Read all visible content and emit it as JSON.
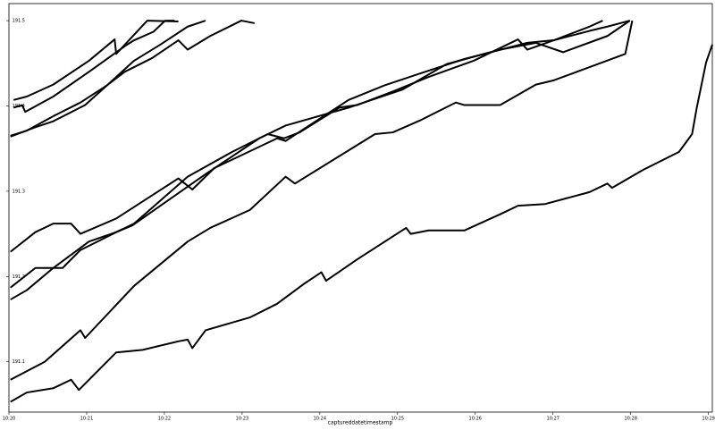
{
  "chart_data": {
    "type": "line",
    "x_label": "captureddatetimestamp",
    "xlim": [
      0,
      9.05
    ],
    "ylim": [
      191.041,
      191.52
    ],
    "xticks": [
      {
        "value": 0,
        "label": "10:20"
      },
      {
        "value": 1,
        "label": "10:21"
      },
      {
        "value": 2,
        "label": "10:22"
      },
      {
        "value": 3,
        "label": "10:23"
      },
      {
        "value": 4,
        "label": "10:24"
      },
      {
        "value": 5,
        "label": "10:25"
      },
      {
        "value": 6,
        "label": "10:26"
      },
      {
        "value": 7,
        "label": "10:27"
      },
      {
        "value": 8,
        "label": "10:28"
      },
      {
        "value": 9,
        "label": "10:29"
      }
    ],
    "yticks": [
      191.1,
      191.2,
      191.3,
      191.4,
      191.5
    ],
    "series": [
      {
        "color": "#000000",
        "x": [
          0.06,
          0.23,
          0.57,
          1.03,
          1.36,
          1.38,
          1.78,
          2.18
        ],
        "values": [
          191.407,
          191.411,
          191.425,
          191.453,
          191.478,
          191.461,
          191.5,
          191.499
        ]
      },
      {
        "color": "#000000",
        "x": [
          0.06,
          0.17,
          0.21,
          0.57,
          1.03,
          1.49,
          1.61,
          1.86,
          2.01,
          2.13
        ],
        "values": [
          191.398,
          191.401,
          191.393,
          191.411,
          191.44,
          191.47,
          191.477,
          191.487,
          191.5,
          191.5
        ]
      },
      {
        "color": "#000000",
        "x": [
          0.02,
          0.23,
          0.57,
          0.92,
          1.26,
          1.61,
          1.95,
          2.3,
          2.53
        ],
        "values": [
          191.365,
          191.371,
          191.388,
          191.404,
          191.424,
          191.453,
          191.472,
          191.493,
          191.5
        ]
      },
      {
        "color": "#000000",
        "x": [
          0.02,
          0.34,
          0.57,
          0.98,
          1.26,
          1.49,
          1.84,
          2.18,
          2.3,
          2.59,
          2.99,
          3.16
        ],
        "values": [
          191.364,
          191.375,
          191.382,
          191.401,
          191.424,
          191.44,
          191.456,
          191.477,
          191.466,
          191.482,
          191.5,
          191.497
        ]
      },
      {
        "color": "#000000",
        "x": [
          0.02,
          0.34,
          0.57,
          0.8,
          0.92,
          1.38,
          2.18,
          2.36,
          2.64,
          3.45,
          3.56,
          4.37,
          4.83,
          5.29,
          5.86,
          6.67,
          7.01,
          7.47,
          7.7,
          7.99
        ],
        "values": [
          191.229,
          191.252,
          191.262,
          191.262,
          191.25,
          191.268,
          191.315,
          191.302,
          191.327,
          191.362,
          191.359,
          191.407,
          191.424,
          191.438,
          191.455,
          191.474,
          191.477,
          191.488,
          191.493,
          191.5
        ]
      },
      {
        "color": "#000000",
        "x": [
          0.02,
          0.34,
          0.69,
          0.92,
          1.38,
          1.61,
          2.3,
          2.87,
          3.33,
          3.54,
          3.74,
          4.25,
          4.48,
          4.94,
          5.4,
          5.98,
          6.55,
          6.67,
          7.01,
          7.47,
          7.64
        ],
        "values": [
          191.187,
          191.21,
          191.21,
          191.231,
          191.252,
          191.262,
          191.317,
          191.346,
          191.367,
          191.362,
          191.369,
          191.398,
          191.401,
          191.417,
          191.434,
          191.453,
          191.478,
          191.466,
          191.477,
          191.493,
          191.5
        ]
      },
      {
        "color": "#000000",
        "x": [
          0.02,
          0.23,
          0.57,
          1.03,
          1.38,
          1.59,
          1.95,
          2.53,
          3.22,
          3.56,
          4.37,
          5.06,
          5.63,
          6.32,
          6.78,
          7.13,
          7.7,
          7.99
        ],
        "values": [
          191.173,
          191.184,
          191.21,
          191.241,
          191.252,
          191.26,
          191.283,
          191.32,
          191.362,
          191.377,
          191.398,
          191.419,
          191.449,
          191.466,
          191.474,
          191.463,
          191.482,
          191.5
        ]
      },
      {
        "color": "#000000",
        "x": [
          0.02,
          0.46,
          0.92,
          0.98,
          1.61,
          2.3,
          2.59,
          3.1,
          3.56,
          3.68,
          4.71,
          4.94,
          5.29,
          5.75,
          5.86,
          6.32,
          6.78,
          7.01,
          7.93,
          8.02
        ],
        "values": [
          191.079,
          191.1,
          191.137,
          191.128,
          191.189,
          191.241,
          191.257,
          191.278,
          191.317,
          191.309,
          191.367,
          191.369,
          191.383,
          191.404,
          191.401,
          191.401,
          191.425,
          191.43,
          191.461,
          191.5
        ]
      },
      {
        "color": "#000000",
        "x": [
          0.02,
          0.23,
          0.57,
          0.8,
          0.9,
          1.38,
          1.72,
          2.18,
          2.3,
          2.36,
          2.53,
          3.1,
          3.45,
          3.79,
          4.02,
          4.08,
          4.48,
          4.94,
          5.11,
          5.17,
          5.4,
          5.86,
          6.32,
          6.55,
          6.9,
          7.47,
          7.7,
          7.76,
          8.16,
          8.62,
          8.71,
          8.79,
          8.85,
          8.97,
          9.05
        ],
        "values": [
          191.053,
          191.064,
          191.069,
          191.079,
          191.067,
          191.111,
          191.114,
          191.124,
          191.126,
          191.116,
          191.137,
          191.152,
          191.168,
          191.191,
          191.205,
          191.195,
          191.22,
          191.247,
          191.257,
          191.25,
          191.254,
          191.254,
          191.273,
          191.283,
          191.285,
          191.299,
          191.309,
          191.304,
          191.325,
          191.346,
          191.357,
          191.367,
          191.398,
          191.451,
          191.472
        ]
      }
    ]
  }
}
